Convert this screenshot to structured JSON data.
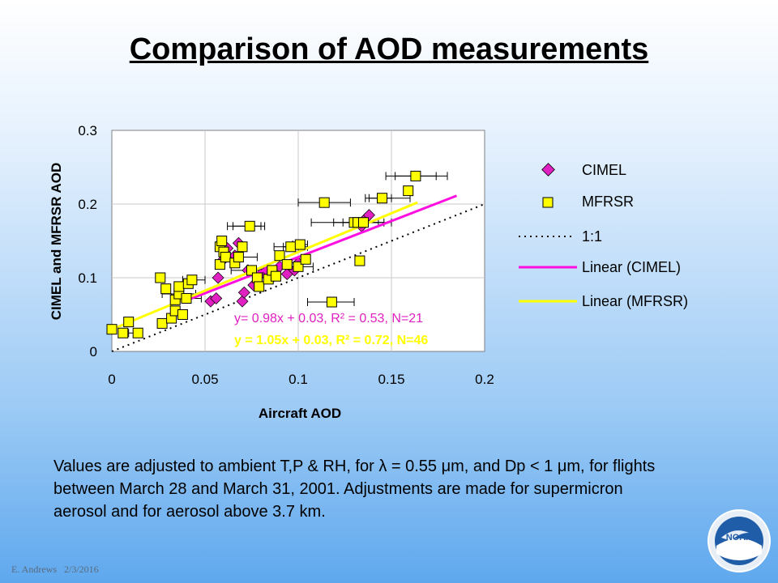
{
  "title": "Comparison of AOD measurements",
  "caption": "Values are adjusted to ambient T,P & RH, for λ = 0.55 μm, and Dp < 1 μm, for flights between March 28 and March 31, 2001. Adjustments are made for supermicron aerosol and for aerosol above 3.7 km.",
  "footer": {
    "author": "E. Andrews",
    "date": "2/3/2016"
  },
  "logo": {
    "text": "NOAA"
  },
  "colors": {
    "cimel": "#e020c0",
    "mfrsr_fill": "#ffff00",
    "one_to_one": "#000000",
    "linear_cimel": "#ff10e0",
    "linear_mfrsr": "#ffff00",
    "grid": "#c8c8c8"
  },
  "chart_data": {
    "type": "scatter",
    "xlabel": "Aircraft AOD",
    "ylabel": "CIMEL and MFRSR AOD",
    "xlim": [
      0,
      0.2
    ],
    "ylim": [
      0,
      0.3
    ],
    "x_ticks": [
      "0",
      "0.05",
      "0.1",
      "0.15",
      "0.2"
    ],
    "y_ticks": [
      "0",
      "0.1",
      "0.2",
      "0.3"
    ],
    "grid": true,
    "legend_position": "right",
    "series": [
      {
        "name": "CIMEL",
        "marker": "diamond",
        "points": [
          [
            0.053,
            0.068
          ],
          [
            0.056,
            0.072
          ],
          [
            0.057,
            0.1
          ],
          [
            0.06,
            0.125
          ],
          [
            0.062,
            0.14
          ],
          [
            0.066,
            0.13
          ],
          [
            0.068,
            0.147
          ],
          [
            0.07,
            0.068
          ],
          [
            0.071,
            0.08
          ],
          [
            0.073,
            0.11
          ],
          [
            0.076,
            0.09
          ],
          [
            0.08,
            0.105
          ],
          [
            0.083,
            0.11
          ],
          [
            0.086,
            0.1
          ],
          [
            0.09,
            0.115
          ],
          [
            0.094,
            0.105
          ],
          [
            0.098,
            0.11
          ],
          [
            0.1,
            0.12
          ],
          [
            0.134,
            0.17
          ],
          [
            0.136,
            0.18
          ],
          [
            0.138,
            0.185
          ]
        ]
      },
      {
        "name": "MFRSR",
        "marker": "square",
        "points": [
          [
            0.0,
            0.03
          ],
          [
            0.006,
            0.025
          ],
          [
            0.009,
            0.04
          ],
          [
            0.014,
            0.025
          ],
          [
            0.026,
            0.1
          ],
          [
            0.027,
            0.038
          ],
          [
            0.029,
            0.085
          ],
          [
            0.032,
            0.045
          ],
          [
            0.034,
            0.055
          ],
          [
            0.034,
            0.07
          ],
          [
            0.036,
            0.078
          ],
          [
            0.036,
            0.088
          ],
          [
            0.038,
            0.05
          ],
          [
            0.04,
            0.072
          ],
          [
            0.041,
            0.092
          ],
          [
            0.043,
            0.097
          ],
          [
            0.058,
            0.142
          ],
          [
            0.058,
            0.118
          ],
          [
            0.059,
            0.15
          ],
          [
            0.06,
            0.135
          ],
          [
            0.061,
            0.128
          ],
          [
            0.066,
            0.12
          ],
          [
            0.068,
            0.128
          ],
          [
            0.07,
            0.142
          ],
          [
            0.074,
            0.17
          ],
          [
            0.075,
            0.11
          ],
          [
            0.078,
            0.1
          ],
          [
            0.079,
            0.088
          ],
          [
            0.084,
            0.098
          ],
          [
            0.086,
            0.11
          ],
          [
            0.088,
            0.102
          ],
          [
            0.09,
            0.13
          ],
          [
            0.094,
            0.118
          ],
          [
            0.096,
            0.142
          ],
          [
            0.1,
            0.115
          ],
          [
            0.101,
            0.145
          ],
          [
            0.104,
            0.125
          ],
          [
            0.114,
            0.202
          ],
          [
            0.118,
            0.067
          ],
          [
            0.13,
            0.175
          ],
          [
            0.132,
            0.175
          ],
          [
            0.133,
            0.123
          ],
          [
            0.135,
            0.175
          ],
          [
            0.145,
            0.208
          ],
          [
            0.159,
            0.218
          ],
          [
            0.163,
            0.238
          ]
        ],
        "x_error_bars": [
          [
            0.009,
            0.016
          ],
          [
            0.119,
            0.146
          ],
          [
            0.138,
            0.15
          ],
          [
            0.136,
            0.16
          ],
          [
            0.152,
            0.174
          ],
          [
            0.147,
            0.18
          ],
          [
            0.1,
            0.128
          ],
          [
            0.105,
            0.13
          ],
          [
            0.124,
            0.15
          ],
          [
            0.107,
            0.143
          ],
          [
            0.064,
            0.085
          ],
          [
            0.058,
            0.078
          ],
          [
            0.065,
            0.08
          ],
          [
            0.062,
            0.082
          ],
          [
            0.089,
            0.108
          ],
          [
            0.097,
            0.105
          ],
          [
            0.027,
            0.045
          ],
          [
            0.032,
            0.048
          ],
          [
            0.038,
            0.05
          ],
          [
            0.087,
            0.105
          ],
          [
            0.092,
            0.1
          ]
        ]
      }
    ],
    "fits": [
      {
        "name": "1:1",
        "style": "dotted",
        "slope": 1.0,
        "intercept": 0.0,
        "x_range": [
          0,
          0.2
        ]
      },
      {
        "name": "Linear (CIMEL)",
        "slope": 0.98,
        "intercept": 0.03,
        "x_range": [
          0.04,
          0.185
        ],
        "equation": "y= 0.98x + 0.03, R² = 0.53, N=21"
      },
      {
        "name": "Linear (MFRSR)",
        "slope": 1.05,
        "intercept": 0.03,
        "x_range": [
          0.0,
          0.164
        ],
        "equation": "y = 1.05x + 0.03, R² = 0.72, N=46"
      }
    ],
    "legend": [
      "CIMEL",
      "MFRSR",
      "1:1",
      "Linear (CIMEL)",
      "Linear (MFRSR)"
    ]
  }
}
